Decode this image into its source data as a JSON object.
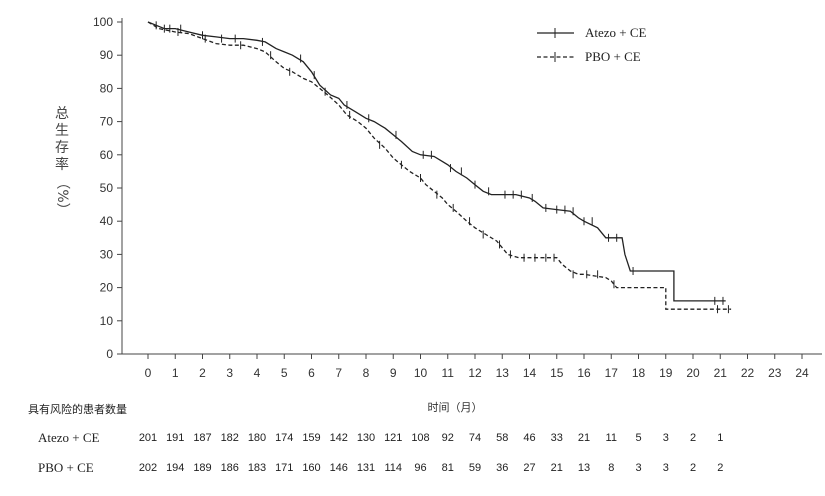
{
  "chart_data": {
    "type": "line",
    "title": "",
    "xlabel": "时间（月）",
    "ylabel_chars": [
      "总",
      "生",
      "存",
      "率"
    ],
    "ylabel_unit": "（%）",
    "xlim": [
      0,
      24
    ],
    "ylim": [
      0,
      100
    ],
    "x_ticks": [
      0,
      1,
      2,
      3,
      4,
      5,
      6,
      7,
      8,
      9,
      10,
      11,
      12,
      13,
      14,
      15,
      16,
      17,
      18,
      19,
      20,
      21,
      22,
      23,
      24
    ],
    "y_ticks": [
      0,
      10,
      20,
      30,
      40,
      50,
      60,
      70,
      80,
      90,
      100
    ],
    "legend_position": "top-right",
    "series": [
      {
        "name": "Atezo + CE",
        "style": "solid",
        "points": [
          [
            0,
            100
          ],
          [
            0.3,
            99
          ],
          [
            0.6,
            98
          ],
          [
            1,
            98
          ],
          [
            1.5,
            97
          ],
          [
            2,
            96
          ],
          [
            2.5,
            95.5
          ],
          [
            3,
            95
          ],
          [
            3.5,
            95
          ],
          [
            4,
            94.5
          ],
          [
            4.3,
            94
          ],
          [
            4.7,
            92
          ],
          [
            5,
            91
          ],
          [
            5.3,
            90
          ],
          [
            5.7,
            88
          ],
          [
            6,
            85
          ],
          [
            6.3,
            81
          ],
          [
            6.7,
            78
          ],
          [
            7,
            77
          ],
          [
            7.2,
            75
          ],
          [
            7.6,
            73
          ],
          [
            8,
            71
          ],
          [
            8.3,
            70
          ],
          [
            8.7,
            68
          ],
          [
            9,
            66
          ],
          [
            9.3,
            64
          ],
          [
            9.7,
            61
          ],
          [
            10,
            60
          ],
          [
            10.5,
            59.5
          ],
          [
            10.8,
            58
          ],
          [
            11,
            57
          ],
          [
            11.3,
            55
          ],
          [
            11.7,
            53
          ],
          [
            12,
            51
          ],
          [
            12.3,
            49
          ],
          [
            12.6,
            48
          ],
          [
            13,
            48
          ],
          [
            13.5,
            48
          ],
          [
            14,
            47
          ],
          [
            14.2,
            46
          ],
          [
            14.5,
            44
          ],
          [
            15,
            43.5
          ],
          [
            15.5,
            43
          ],
          [
            15.8,
            41
          ],
          [
            16,
            40
          ],
          [
            16.5,
            38
          ],
          [
            16.8,
            35
          ],
          [
            17,
            35
          ],
          [
            17.4,
            35
          ],
          [
            17.5,
            30
          ],
          [
            17.7,
            25
          ],
          [
            18,
            25
          ],
          [
            19.3,
            25
          ],
          [
            19.3,
            16
          ],
          [
            20,
            16
          ],
          [
            21.2,
            16
          ]
        ],
        "censor_marks": [
          [
            0.3,
            99
          ],
          [
            0.8,
            98
          ],
          [
            1.2,
            98
          ],
          [
            2,
            96
          ],
          [
            2.7,
            95
          ],
          [
            3.2,
            95
          ],
          [
            4.2,
            94
          ],
          [
            5.6,
            89
          ],
          [
            6.1,
            84
          ],
          [
            7.3,
            75
          ],
          [
            8.1,
            71
          ],
          [
            9.1,
            66
          ],
          [
            10.1,
            60
          ],
          [
            10.4,
            60
          ],
          [
            11.1,
            56
          ],
          [
            11.5,
            55
          ],
          [
            12,
            51
          ],
          [
            12.5,
            49
          ],
          [
            13.1,
            48
          ],
          [
            13.4,
            48
          ],
          [
            13.7,
            48
          ],
          [
            14.1,
            47
          ],
          [
            14.6,
            44
          ],
          [
            15,
            43.5
          ],
          [
            15.3,
            43.5
          ],
          [
            15.6,
            43
          ],
          [
            16,
            40
          ],
          [
            16.3,
            40
          ],
          [
            16.9,
            35
          ],
          [
            17.2,
            35
          ],
          [
            17.8,
            25
          ],
          [
            20.8,
            16
          ],
          [
            21.1,
            16
          ]
        ],
        "at_risk": [
          201,
          191,
          187,
          182,
          180,
          174,
          159,
          142,
          130,
          121,
          108,
          92,
          74,
          58,
          46,
          33,
          21,
          11,
          5,
          3,
          2,
          1
        ]
      },
      {
        "name": "PBO + CE",
        "style": "dashed",
        "points": [
          [
            0,
            100
          ],
          [
            0.4,
            98
          ],
          [
            1,
            97
          ],
          [
            1.5,
            96.5
          ],
          [
            2,
            95
          ],
          [
            2.5,
            93.5
          ],
          [
            3,
            93
          ],
          [
            3.5,
            93
          ],
          [
            4,
            92
          ],
          [
            4.3,
            91
          ],
          [
            4.7,
            88
          ],
          [
            5,
            86
          ],
          [
            5.3,
            85
          ],
          [
            5.7,
            83
          ],
          [
            6,
            82
          ],
          [
            6.3,
            80
          ],
          [
            6.6,
            78
          ],
          [
            7,
            75
          ],
          [
            7.3,
            72
          ],
          [
            7.7,
            70
          ],
          [
            8,
            68
          ],
          [
            8.3,
            65
          ],
          [
            8.7,
            62
          ],
          [
            9,
            59
          ],
          [
            9.3,
            57
          ],
          [
            9.6,
            55
          ],
          [
            10,
            53
          ],
          [
            10.2,
            51
          ],
          [
            10.5,
            49
          ],
          [
            10.8,
            47
          ],
          [
            11,
            45
          ],
          [
            11.3,
            43
          ],
          [
            11.7,
            40
          ],
          [
            12,
            38
          ],
          [
            12.4,
            36
          ],
          [
            12.8,
            34
          ],
          [
            13,
            32
          ],
          [
            13.2,
            30
          ],
          [
            13.6,
            29
          ],
          [
            14,
            29
          ],
          [
            14.5,
            29
          ],
          [
            15,
            29
          ],
          [
            15.2,
            27
          ],
          [
            15.5,
            25
          ],
          [
            15.8,
            24
          ],
          [
            16,
            24
          ],
          [
            16.8,
            23
          ],
          [
            17,
            22
          ],
          [
            17.2,
            20
          ],
          [
            17.5,
            20
          ],
          [
            18,
            20
          ],
          [
            19,
            20
          ],
          [
            19,
            13.5
          ],
          [
            20,
            13.5
          ],
          [
            21.4,
            13.5
          ]
        ],
        "censor_marks": [
          [
            0.6,
            98
          ],
          [
            1.1,
            97
          ],
          [
            2.1,
            95
          ],
          [
            3.4,
            93
          ],
          [
            4.5,
            90
          ],
          [
            5.2,
            85
          ],
          [
            6.5,
            79
          ],
          [
            7.4,
            72
          ],
          [
            8.5,
            63
          ],
          [
            9.3,
            57
          ],
          [
            10,
            53
          ],
          [
            10.6,
            48
          ],
          [
            11.2,
            44
          ],
          [
            11.8,
            40
          ],
          [
            12.3,
            36
          ],
          [
            12.9,
            33
          ],
          [
            13.3,
            30
          ],
          [
            13.8,
            29
          ],
          [
            14.2,
            29
          ],
          [
            14.6,
            29
          ],
          [
            14.9,
            29
          ],
          [
            15.6,
            24
          ],
          [
            16.1,
            24
          ],
          [
            16.5,
            24
          ],
          [
            17.1,
            21
          ],
          [
            20.9,
            13.5
          ],
          [
            21.3,
            13.5
          ]
        ],
        "at_risk": [
          202,
          194,
          189,
          186,
          183,
          171,
          160,
          146,
          131,
          114,
          96,
          81,
          59,
          36,
          27,
          21,
          13,
          8,
          3,
          3,
          2,
          2
        ]
      }
    ]
  },
  "risk_table": {
    "title": "具有风险的患者数量"
  }
}
